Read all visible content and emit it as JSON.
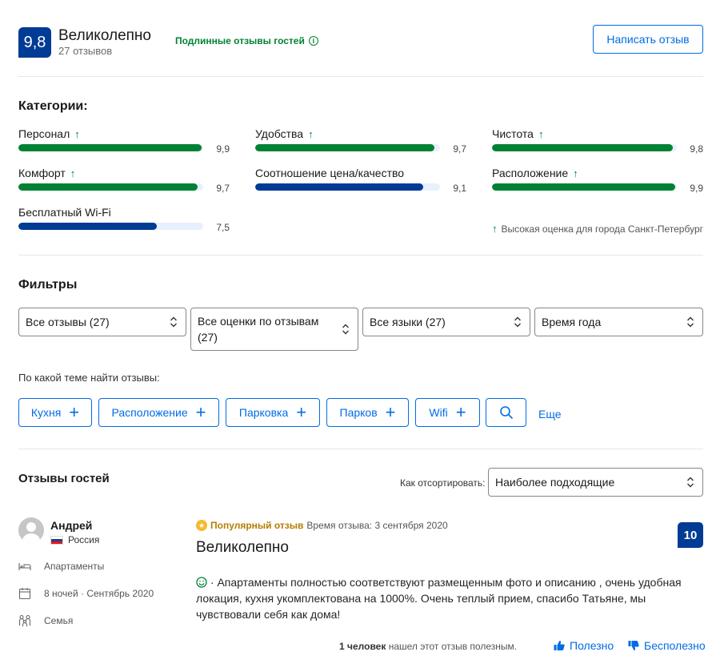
{
  "header": {
    "score": "9,8",
    "score_word": "Великолепно",
    "review_count": "27 отзывов",
    "genuine_label": "Подлинные отзывы гостей",
    "info_glyph": "i",
    "write_review_label": "Написать отзыв"
  },
  "categories": {
    "title": "Категории:",
    "items": [
      {
        "label": "Персонал",
        "value": "9,9",
        "score": 9.9,
        "high": true,
        "color": "green"
      },
      {
        "label": "Удобства",
        "value": "9,7",
        "score": 9.7,
        "high": true,
        "color": "green"
      },
      {
        "label": "Чистота",
        "value": "9,8",
        "score": 9.8,
        "high": true,
        "color": "green"
      },
      {
        "label": "Комфорт",
        "value": "9,7",
        "score": 9.7,
        "high": true,
        "color": "green"
      },
      {
        "label": "Соотношение цена/качество",
        "value": "9,1",
        "score": 9.1,
        "high": false,
        "color": "blue"
      },
      {
        "label": "Расположение",
        "value": "9,9",
        "score": 9.9,
        "high": true,
        "color": "green"
      },
      {
        "label": "Бесплатный Wi-Fi",
        "value": "7,5",
        "score": 7.5,
        "high": false,
        "color": "blue"
      }
    ],
    "high_arrow": "↑",
    "legend": "Высокая оценка для города Санкт-Петербург"
  },
  "filters": {
    "title": "Фильтры",
    "selects": [
      {
        "value": "Все отзывы (27)"
      },
      {
        "value": "Все оценки по отзывам (27)"
      },
      {
        "value": "Все языки (27)"
      },
      {
        "value": "Время года"
      }
    ],
    "topic_question": "По какой теме найти отзывы:",
    "topics": [
      "Кухня",
      "Расположение",
      "Парковка",
      "Парков",
      "Wifi"
    ],
    "plus_glyph": "+",
    "more_label": "Еще"
  },
  "reviews": {
    "title": "Отзывы гостей",
    "sort_label": "Как отсортировать:",
    "sort_value": "Наиболее подходящие",
    "items": [
      {
        "name": "Андрей",
        "country": "Россия",
        "room": "Апартаменты",
        "stay": "8 ночей · Сентябрь 2020",
        "traveler": "Семья",
        "popular_label": "Популярный отзыв",
        "date": "Время отзыва: 3 сентября 2020",
        "title": "Великолепно",
        "score": "10",
        "text": " · Апартаменты полностью соответствуют размещенным фото и описанию , очень удобная локация, кухня укомплектована на 1000%. Очень теплый прием, спасибо Татьяне, мы чувствовали себя как дома!",
        "helpful_people": "1 человек",
        "helpful_suffix": "нашел этот отзыв полезным.",
        "helpful_label": "Полезно",
        "not_helpful_label": "Бесполезно"
      }
    ]
  },
  "colors": {
    "accent": "#006ce4",
    "brand": "#003b95",
    "positive": "#008234",
    "popular": "#f8b830"
  }
}
